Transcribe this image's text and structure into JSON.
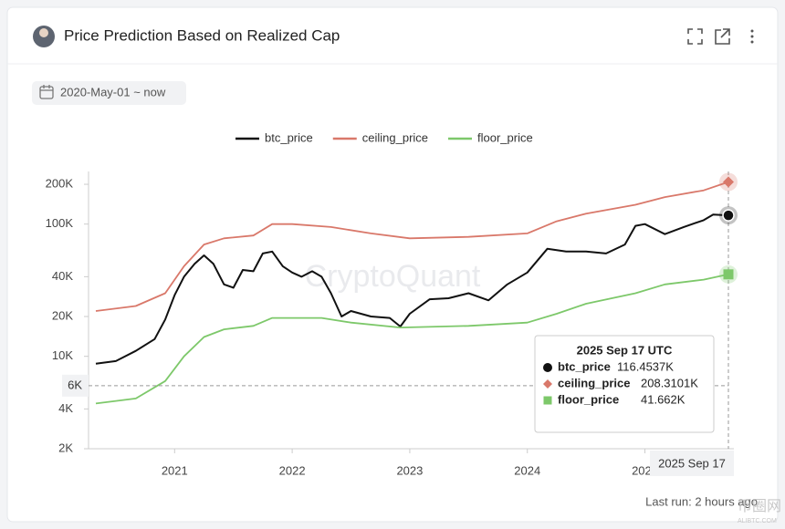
{
  "header": {
    "title": "Price Prediction Based on Realized Cap",
    "date_range": "2020-May-01 ~ now"
  },
  "chart_data": {
    "type": "line",
    "xlim": [
      2020.33,
      2025.71
    ],
    "xticks": [
      2021,
      2022,
      2023,
      2024,
      2025
    ],
    "ylim": [
      2000,
      250000
    ],
    "log_y": true,
    "yticks": [
      {
        "value": 2000,
        "label": "2K"
      },
      {
        "value": 4000,
        "label": "4K"
      },
      {
        "value": 10000,
        "label": "10K"
      },
      {
        "value": 20000,
        "label": "20K"
      },
      {
        "value": 40000,
        "label": "40K"
      },
      {
        "value": 100000,
        "label": "100K"
      },
      {
        "value": 200000,
        "label": "200K"
      }
    ],
    "watermark": "CryptoQuant",
    "series": [
      {
        "name": "btc_price",
        "color": "#111111",
        "marker": "circle",
        "x": [
          2020.33,
          2020.5,
          2020.67,
          2020.83,
          2020.92,
          2021.0,
          2021.08,
          2021.17,
          2021.25,
          2021.33,
          2021.42,
          2021.5,
          2021.58,
          2021.67,
          2021.75,
          2021.83,
          2021.92,
          2022.0,
          2022.08,
          2022.17,
          2022.25,
          2022.33,
          2022.42,
          2022.5,
          2022.67,
          2022.83,
          2022.92,
          2023.0,
          2023.17,
          2023.33,
          2023.5,
          2023.67,
          2023.83,
          2024.0,
          2024.17,
          2024.33,
          2024.5,
          2024.67,
          2024.83,
          2024.92,
          2025.0,
          2025.17,
          2025.33,
          2025.5,
          2025.58,
          2025.71
        ],
        "values": [
          8800,
          9200,
          11000,
          13500,
          19000,
          29000,
          40000,
          50000,
          58000,
          50000,
          35000,
          33000,
          45000,
          44000,
          60000,
          62000,
          48000,
          43000,
          40000,
          44000,
          40000,
          30000,
          20000,
          22000,
          20000,
          19500,
          16800,
          21000,
          27000,
          27500,
          30000,
          26500,
          35000,
          43000,
          65000,
          62000,
          62000,
          60000,
          70000,
          97000,
          100000,
          84000,
          95000,
          107000,
          118000,
          116453.7
        ]
      },
      {
        "name": "ceiling_price",
        "color": "#d9786a",
        "marker": "diamond",
        "x": [
          2020.33,
          2020.67,
          2020.92,
          2021.08,
          2021.25,
          2021.42,
          2021.67,
          2021.83,
          2022.0,
          2022.33,
          2022.67,
          2023.0,
          2023.5,
          2024.0,
          2024.25,
          2024.5,
          2024.92,
          2025.17,
          2025.5,
          2025.71
        ],
        "values": [
          22000,
          24000,
          30000,
          48000,
          70000,
          78000,
          82000,
          100000,
          100000,
          95000,
          85000,
          78000,
          80000,
          85000,
          105000,
          120000,
          140000,
          160000,
          180000,
          208310.1
        ]
      },
      {
        "name": "floor_price",
        "color": "#7dc86a",
        "marker": "square",
        "x": [
          2020.33,
          2020.67,
          2020.92,
          2021.08,
          2021.25,
          2021.42,
          2021.67,
          2021.83,
          2022.25,
          2022.5,
          2022.92,
          2023.5,
          2024.0,
          2024.25,
          2024.5,
          2024.92,
          2025.17,
          2025.5,
          2025.71
        ],
        "values": [
          4400,
          4800,
          6500,
          10000,
          14000,
          16000,
          17000,
          19500,
          19500,
          18000,
          16500,
          17000,
          18000,
          21000,
          25000,
          30000,
          35000,
          38000,
          41662
        ]
      }
    ],
    "crosshair": {
      "x": 2025.71,
      "x_label": "2025 Sep 17",
      "y": 6000,
      "y_label": "6K"
    },
    "tooltip": {
      "title": "2025 Sep 17 UTC",
      "value_labels": [
        "116.4537K",
        "208.3101K",
        "41.662K"
      ]
    }
  },
  "footer": {
    "last_run": "Last run: 2 hours ago",
    "watermark": "币圈网",
    "watermark_sub": "ALIBTC.COM"
  }
}
